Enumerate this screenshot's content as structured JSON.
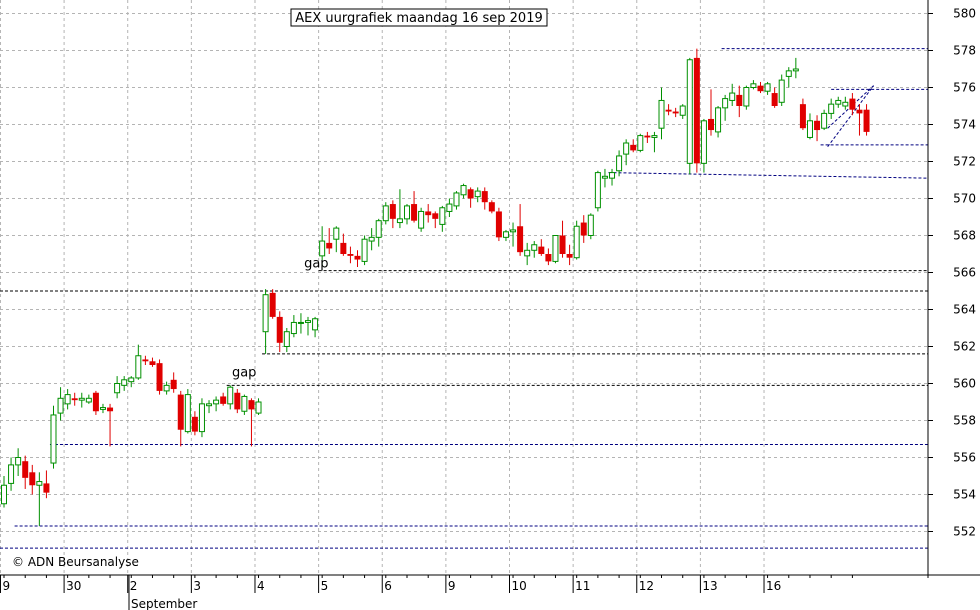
{
  "chart_data": {
    "type": "candlestick",
    "title": "AEX uurgrafiek maandag 16 sep 2019",
    "credit": "© ADN Beursanalyse",
    "month_label": "September",
    "ylim": [
      550,
      581
    ],
    "y_ticks": [
      552,
      554,
      556,
      558,
      560,
      562,
      564,
      566,
      568,
      570,
      572,
      574,
      576,
      578,
      580
    ],
    "x_ticks": [
      {
        "label": "9",
        "i": -0.5
      },
      {
        "label": "30",
        "i": 8.5
      },
      {
        "label": "2",
        "i": 17.5
      },
      {
        "label": "3",
        "i": 26.5
      },
      {
        "label": "4",
        "i": 35.5
      },
      {
        "label": "5",
        "i": 44.5
      },
      {
        "label": "6",
        "i": 53.5
      },
      {
        "label": "9",
        "i": 62.5
      },
      {
        "label": "10",
        "i": 71.5
      },
      {
        "label": "11",
        "i": 80.5
      },
      {
        "label": "12",
        "i": 89.5
      },
      {
        "label": "13",
        "i": 98.5
      },
      {
        "label": "16",
        "i": 107.5
      }
    ],
    "candles": [
      [
        553.5,
        555.0,
        553.3,
        554.5
      ],
      [
        554.6,
        556.0,
        554.2,
        555.6
      ],
      [
        555.6,
        556.5,
        555.0,
        556.0
      ],
      [
        555.8,
        556.1,
        554.3,
        554.9
      ],
      [
        555.2,
        555.6,
        554.0,
        554.5
      ],
      [
        554.5,
        555.2,
        552.3,
        554.7
      ],
      [
        554.6,
        555.3,
        553.8,
        554.1
      ],
      [
        555.7,
        558.8,
        555.4,
        558.3
      ],
      [
        558.4,
        559.8,
        558.0,
        559.2
      ],
      [
        558.9,
        559.7,
        558.6,
        559.4
      ],
      [
        559.2,
        559.5,
        558.8,
        559.1
      ],
      [
        559.1,
        559.5,
        558.7,
        559.2
      ],
      [
        559.0,
        559.4,
        558.9,
        559.2
      ],
      [
        559.5,
        559.6,
        558.3,
        558.5
      ],
      [
        558.6,
        558.9,
        558.4,
        558.7
      ],
      [
        558.7,
        558.9,
        556.6,
        558.5
      ],
      [
        559.5,
        560.4,
        559.2,
        560.0
      ],
      [
        559.9,
        560.4,
        559.6,
        560.2
      ],
      [
        560.1,
        560.4,
        559.8,
        560.3
      ],
      [
        560.3,
        562.1,
        560.2,
        561.5
      ],
      [
        561.3,
        561.5,
        561.0,
        561.2
      ],
      [
        561.2,
        561.4,
        560.9,
        561.0
      ],
      [
        561.1,
        561.3,
        559.4,
        559.6
      ],
      [
        559.6,
        560.1,
        559.4,
        559.9
      ],
      [
        560.2,
        560.6,
        559.5,
        559.7
      ],
      [
        559.4,
        559.6,
        556.6,
        557.5
      ],
      [
        557.4,
        559.7,
        557.3,
        559.4
      ],
      [
        558.2,
        558.5,
        557.2,
        557.4
      ],
      [
        557.4,
        559.2,
        557.1,
        558.9
      ],
      [
        558.8,
        559.1,
        558.4,
        558.9
      ],
      [
        558.9,
        559.3,
        558.5,
        559.1
      ],
      [
        559.3,
        559.5,
        558.8,
        558.9
      ],
      [
        558.9,
        559.9,
        558.6,
        559.8
      ],
      [
        559.5,
        559.7,
        558.4,
        558.6
      ],
      [
        558.5,
        559.4,
        558.3,
        559.3
      ],
      [
        559.1,
        559.2,
        556.6,
        558.6
      ],
      [
        558.4,
        559.2,
        558.3,
        559.0
      ],
      [
        562.8,
        565.1,
        561.6,
        564.8
      ],
      [
        564.9,
        565.1,
        563.5,
        563.6
      ],
      [
        563.6,
        563.9,
        561.7,
        562.2
      ],
      [
        562.0,
        563.0,
        561.7,
        562.8
      ],
      [
        562.7,
        563.7,
        562.5,
        563.3
      ],
      [
        563.3,
        563.8,
        562.7,
        563.3
      ],
      [
        563.3,
        563.6,
        562.6,
        563.4
      ],
      [
        562.9,
        563.6,
        562.5,
        563.5
      ],
      [
        566.9,
        568.5,
        566.3,
        567.7
      ],
      [
        567.6,
        568.4,
        567.0,
        567.3
      ],
      [
        567.8,
        568.5,
        567.1,
        568.4
      ],
      [
        567.6,
        568.1,
        566.9,
        567.0
      ],
      [
        567.0,
        567.4,
        566.5,
        566.9
      ],
      [
        566.9,
        567.2,
        566.3,
        566.7
      ],
      [
        566.6,
        568.0,
        566.4,
        567.8
      ],
      [
        567.7,
        568.4,
        567.2,
        567.9
      ],
      [
        567.9,
        568.9,
        567.4,
        568.8
      ],
      [
        568.8,
        569.8,
        568.6,
        569.6
      ],
      [
        569.7,
        569.9,
        568.4,
        568.9
      ],
      [
        568.7,
        570.5,
        568.4,
        568.9
      ],
      [
        568.9,
        569.7,
        568.6,
        569.6
      ],
      [
        569.7,
        570.4,
        568.7,
        568.8
      ],
      [
        568.4,
        569.5,
        568.2,
        569.3
      ],
      [
        569.3,
        569.7,
        568.7,
        569.1
      ],
      [
        569.2,
        569.3,
        568.4,
        568.9
      ],
      [
        568.6,
        569.6,
        568.2,
        569.5
      ],
      [
        569.3,
        570.0,
        569.0,
        569.7
      ],
      [
        569.6,
        570.4,
        569.4,
        570.3
      ],
      [
        570.2,
        570.8,
        570.0,
        570.7
      ],
      [
        570.5,
        570.6,
        569.5,
        570.0
      ],
      [
        570.1,
        570.6,
        569.8,
        570.4
      ],
      [
        570.4,
        570.6,
        569.4,
        569.8
      ],
      [
        569.8,
        569.9,
        569.2,
        569.3
      ],
      [
        569.3,
        569.5,
        567.7,
        567.9
      ],
      [
        567.9,
        568.3,
        567.7,
        568.2
      ],
      [
        568.2,
        568.7,
        567.4,
        568.3
      ],
      [
        568.5,
        569.7,
        566.9,
        567.1
      ],
      [
        566.9,
        567.6,
        566.4,
        567.2
      ],
      [
        567.2,
        567.7,
        566.8,
        567.5
      ],
      [
        567.4,
        567.8,
        566.9,
        567.0
      ],
      [
        567.0,
        567.3,
        566.4,
        566.6
      ],
      [
        566.6,
        568.0,
        566.5,
        568.0
      ],
      [
        568.0,
        568.8,
        566.8,
        567.0
      ],
      [
        567.0,
        567.5,
        566.4,
        566.8
      ],
      [
        566.8,
        568.8,
        566.7,
        568.5
      ],
      [
        568.7,
        569.1,
        567.6,
        568.0
      ],
      [
        568.0,
        569.2,
        567.8,
        569.1
      ],
      [
        569.5,
        571.5,
        569.3,
        571.4
      ],
      [
        571.1,
        571.6,
        570.6,
        571.2
      ],
      [
        571.1,
        571.6,
        570.7,
        571.4
      ],
      [
        571.5,
        572.6,
        571.2,
        572.3
      ],
      [
        572.4,
        573.2,
        571.8,
        573.0
      ],
      [
        572.9,
        573.2,
        572.5,
        572.6
      ],
      [
        572.6,
        573.5,
        572.5,
        573.4
      ],
      [
        573.4,
        573.6,
        573.0,
        573.3
      ],
      [
        573.3,
        573.6,
        572.5,
        573.4
      ],
      [
        573.8,
        576.0,
        573.2,
        575.3
      ],
      [
        574.8,
        575.1,
        574.5,
        574.7
      ],
      [
        574.7,
        574.9,
        574.4,
        574.6
      ],
      [
        574.5,
        575.1,
        574.3,
        575.0
      ],
      [
        571.9,
        577.6,
        571.3,
        577.5
      ],
      [
        577.6,
        578.1,
        571.4,
        571.9
      ],
      [
        571.9,
        574.3,
        571.4,
        574.2
      ],
      [
        574.3,
        575.9,
        573.4,
        573.7
      ],
      [
        573.6,
        575.0,
        573.3,
        574.9
      ],
      [
        574.9,
        575.6,
        574.2,
        575.4
      ],
      [
        575.3,
        576.2,
        575.0,
        575.7
      ],
      [
        575.6,
        576.1,
        574.4,
        575.0
      ],
      [
        575.0,
        576.1,
        574.8,
        576.0
      ],
      [
        576.0,
        576.4,
        575.9,
        576.2
      ],
      [
        576.1,
        576.3,
        575.7,
        575.8
      ],
      [
        575.8,
        576.3,
        575.6,
        576.2
      ],
      [
        575.7,
        576.0,
        574.9,
        575.0
      ],
      [
        575.2,
        576.7,
        575.0,
        576.4
      ],
      [
        576.6,
        577.1,
        576.0,
        576.9
      ],
      [
        576.9,
        577.6,
        576.5,
        577.0
      ],
      [
        575.1,
        575.4,
        573.7,
        573.8
      ],
      [
        573.3,
        574.6,
        573.2,
        574.2
      ],
      [
        574.2,
        574.5,
        573.1,
        573.7
      ],
      [
        573.8,
        574.8,
        573.7,
        574.6
      ],
      [
        574.6,
        575.4,
        574.3,
        575.1
      ],
      [
        575.1,
        575.5,
        574.9,
        575.3
      ],
      [
        575.0,
        575.5,
        574.8,
        575.2
      ],
      [
        575.4,
        575.7,
        574.5,
        574.8
      ],
      [
        574.8,
        575.1,
        573.4,
        574.6
      ],
      [
        574.8,
        575.1,
        573.4,
        573.6
      ]
    ],
    "trend_lines": [
      {
        "i0": 1.5,
        "y0": 552.3,
        "i1": 132,
        "y1": 552.3,
        "color": "#000080"
      },
      {
        "i0": -1,
        "y0": 551.1,
        "i1": 132,
        "y1": 551.1,
        "color": "#000080"
      },
      {
        "i0": 6.5,
        "y0": 556.7,
        "i1": 132,
        "y1": 556.7,
        "color": "#000080"
      },
      {
        "i0": 31.5,
        "y0": 559.9,
        "i1": 132,
        "y1": 559.9,
        "color": "#000000"
      },
      {
        "i0": 36.5,
        "y0": 561.6,
        "i1": 132,
        "y1": 561.6,
        "color": "#000000"
      },
      {
        "i0": -1,
        "y0": 565.0,
        "i1": 132,
        "y1": 565.0,
        "color": "#000000"
      },
      {
        "i0": 44.5,
        "y0": 566.1,
        "i1": 132,
        "y1": 566.1,
        "color": "#000000"
      },
      {
        "i0": 85.5,
        "y0": 571.4,
        "i1": 132,
        "y1": 571.1,
        "color": "#000080"
      },
      {
        "i0": 101.5,
        "y0": 578.1,
        "i1": 132,
        "y1": 578.1,
        "color": "#000080"
      },
      {
        "i0": 117,
        "y0": 575.9,
        "i1": 132,
        "y1": 575.9,
        "color": "#000080"
      },
      {
        "i0": 115.5,
        "y0": 572.9,
        "i1": 132,
        "y1": 572.9,
        "color": "#000080"
      },
      {
        "i0": 116.5,
        "y0": 572.8,
        "i1": 123,
        "y1": 576.1,
        "color": "#000080"
      },
      {
        "i0": 116.5,
        "y0": 573.8,
        "i1": 123,
        "y1": 576.1,
        "color": "#000080"
      }
    ],
    "annotations": [
      {
        "text": "gap",
        "i": 33.8,
        "y": 560.6
      },
      {
        "text": "gap",
        "i": 44.0,
        "y": 566.5
      }
    ],
    "colors": {
      "up": "#009000",
      "down": "#e00000",
      "grid": "#b4b4b4",
      "axis": "#000000"
    }
  }
}
